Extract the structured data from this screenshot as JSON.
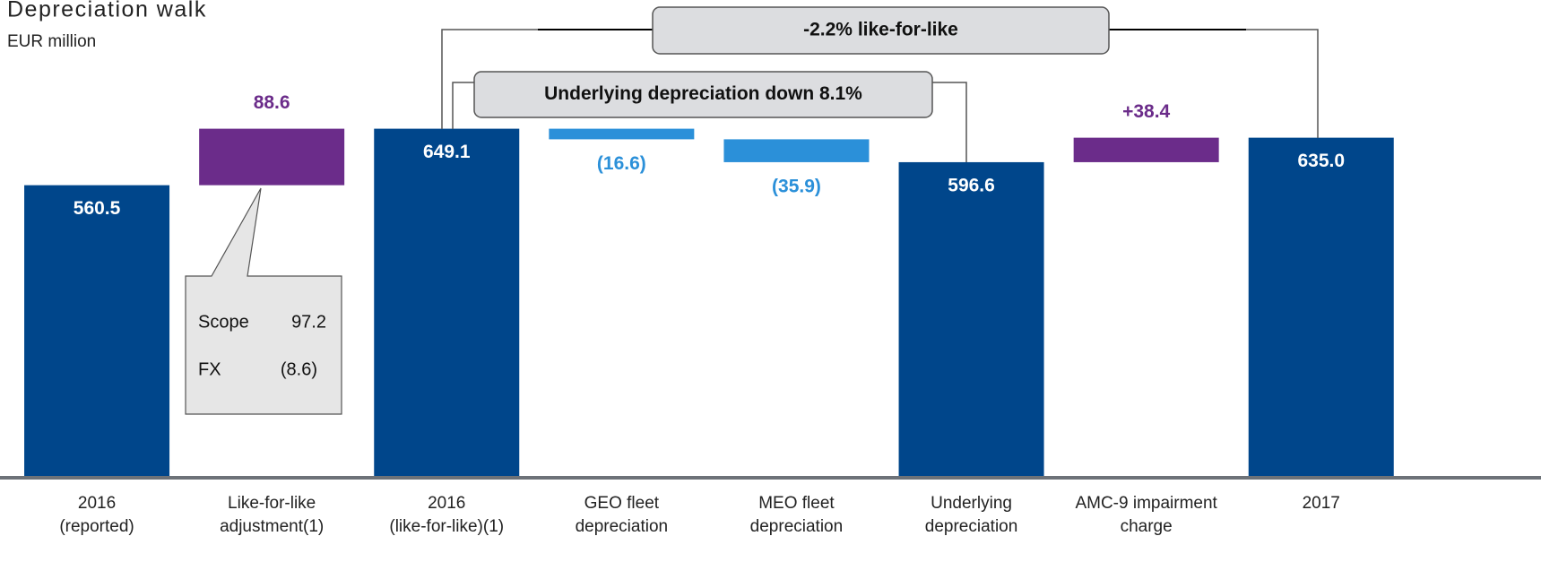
{
  "chart_data": {
    "type": "waterfall",
    "title": "Depreciation walk",
    "subtitle": "EUR million",
    "categories": [
      [
        "2016",
        "(reported)"
      ],
      [
        "Like-for-like",
        "adjustment(1)"
      ],
      [
        "2016",
        "(like-for-like)(1)"
      ],
      [
        "GEO fleet",
        "depreciation"
      ],
      [
        "MEO fleet",
        "depreciation"
      ],
      [
        "Underlying",
        "depreciation"
      ],
      [
        "AMC-9 impairment",
        "charge"
      ],
      [
        "2017"
      ]
    ],
    "measure": [
      "absolute",
      "relative",
      "absolute",
      "relative",
      "relative",
      "absolute",
      "relative",
      "absolute"
    ],
    "values": [
      560.5,
      88.6,
      649.1,
      -16.6,
      -35.9,
      596.6,
      38.4,
      635.0
    ],
    "value_labels": [
      "560.5",
      "88.6",
      "649.1",
      "(16.6)",
      "(35.9)",
      "596.6",
      "+38.4",
      "635.0"
    ],
    "colors": [
      "#00468b",
      "#6b2c8a",
      "#00468b",
      "#2b90d9",
      "#2b90d9",
      "#00468b",
      "#6b2c8a",
      "#00468b"
    ],
    "ylim": [
      103,
      851
    ],
    "brackets": [
      "-2.2% like-for-like",
      "Underlying depreciation down 8.1%"
    ],
    "breakdown": [
      [
        "Scope",
        "97.2"
      ],
      [
        "FX",
        "(8.6)"
      ]
    ]
  }
}
